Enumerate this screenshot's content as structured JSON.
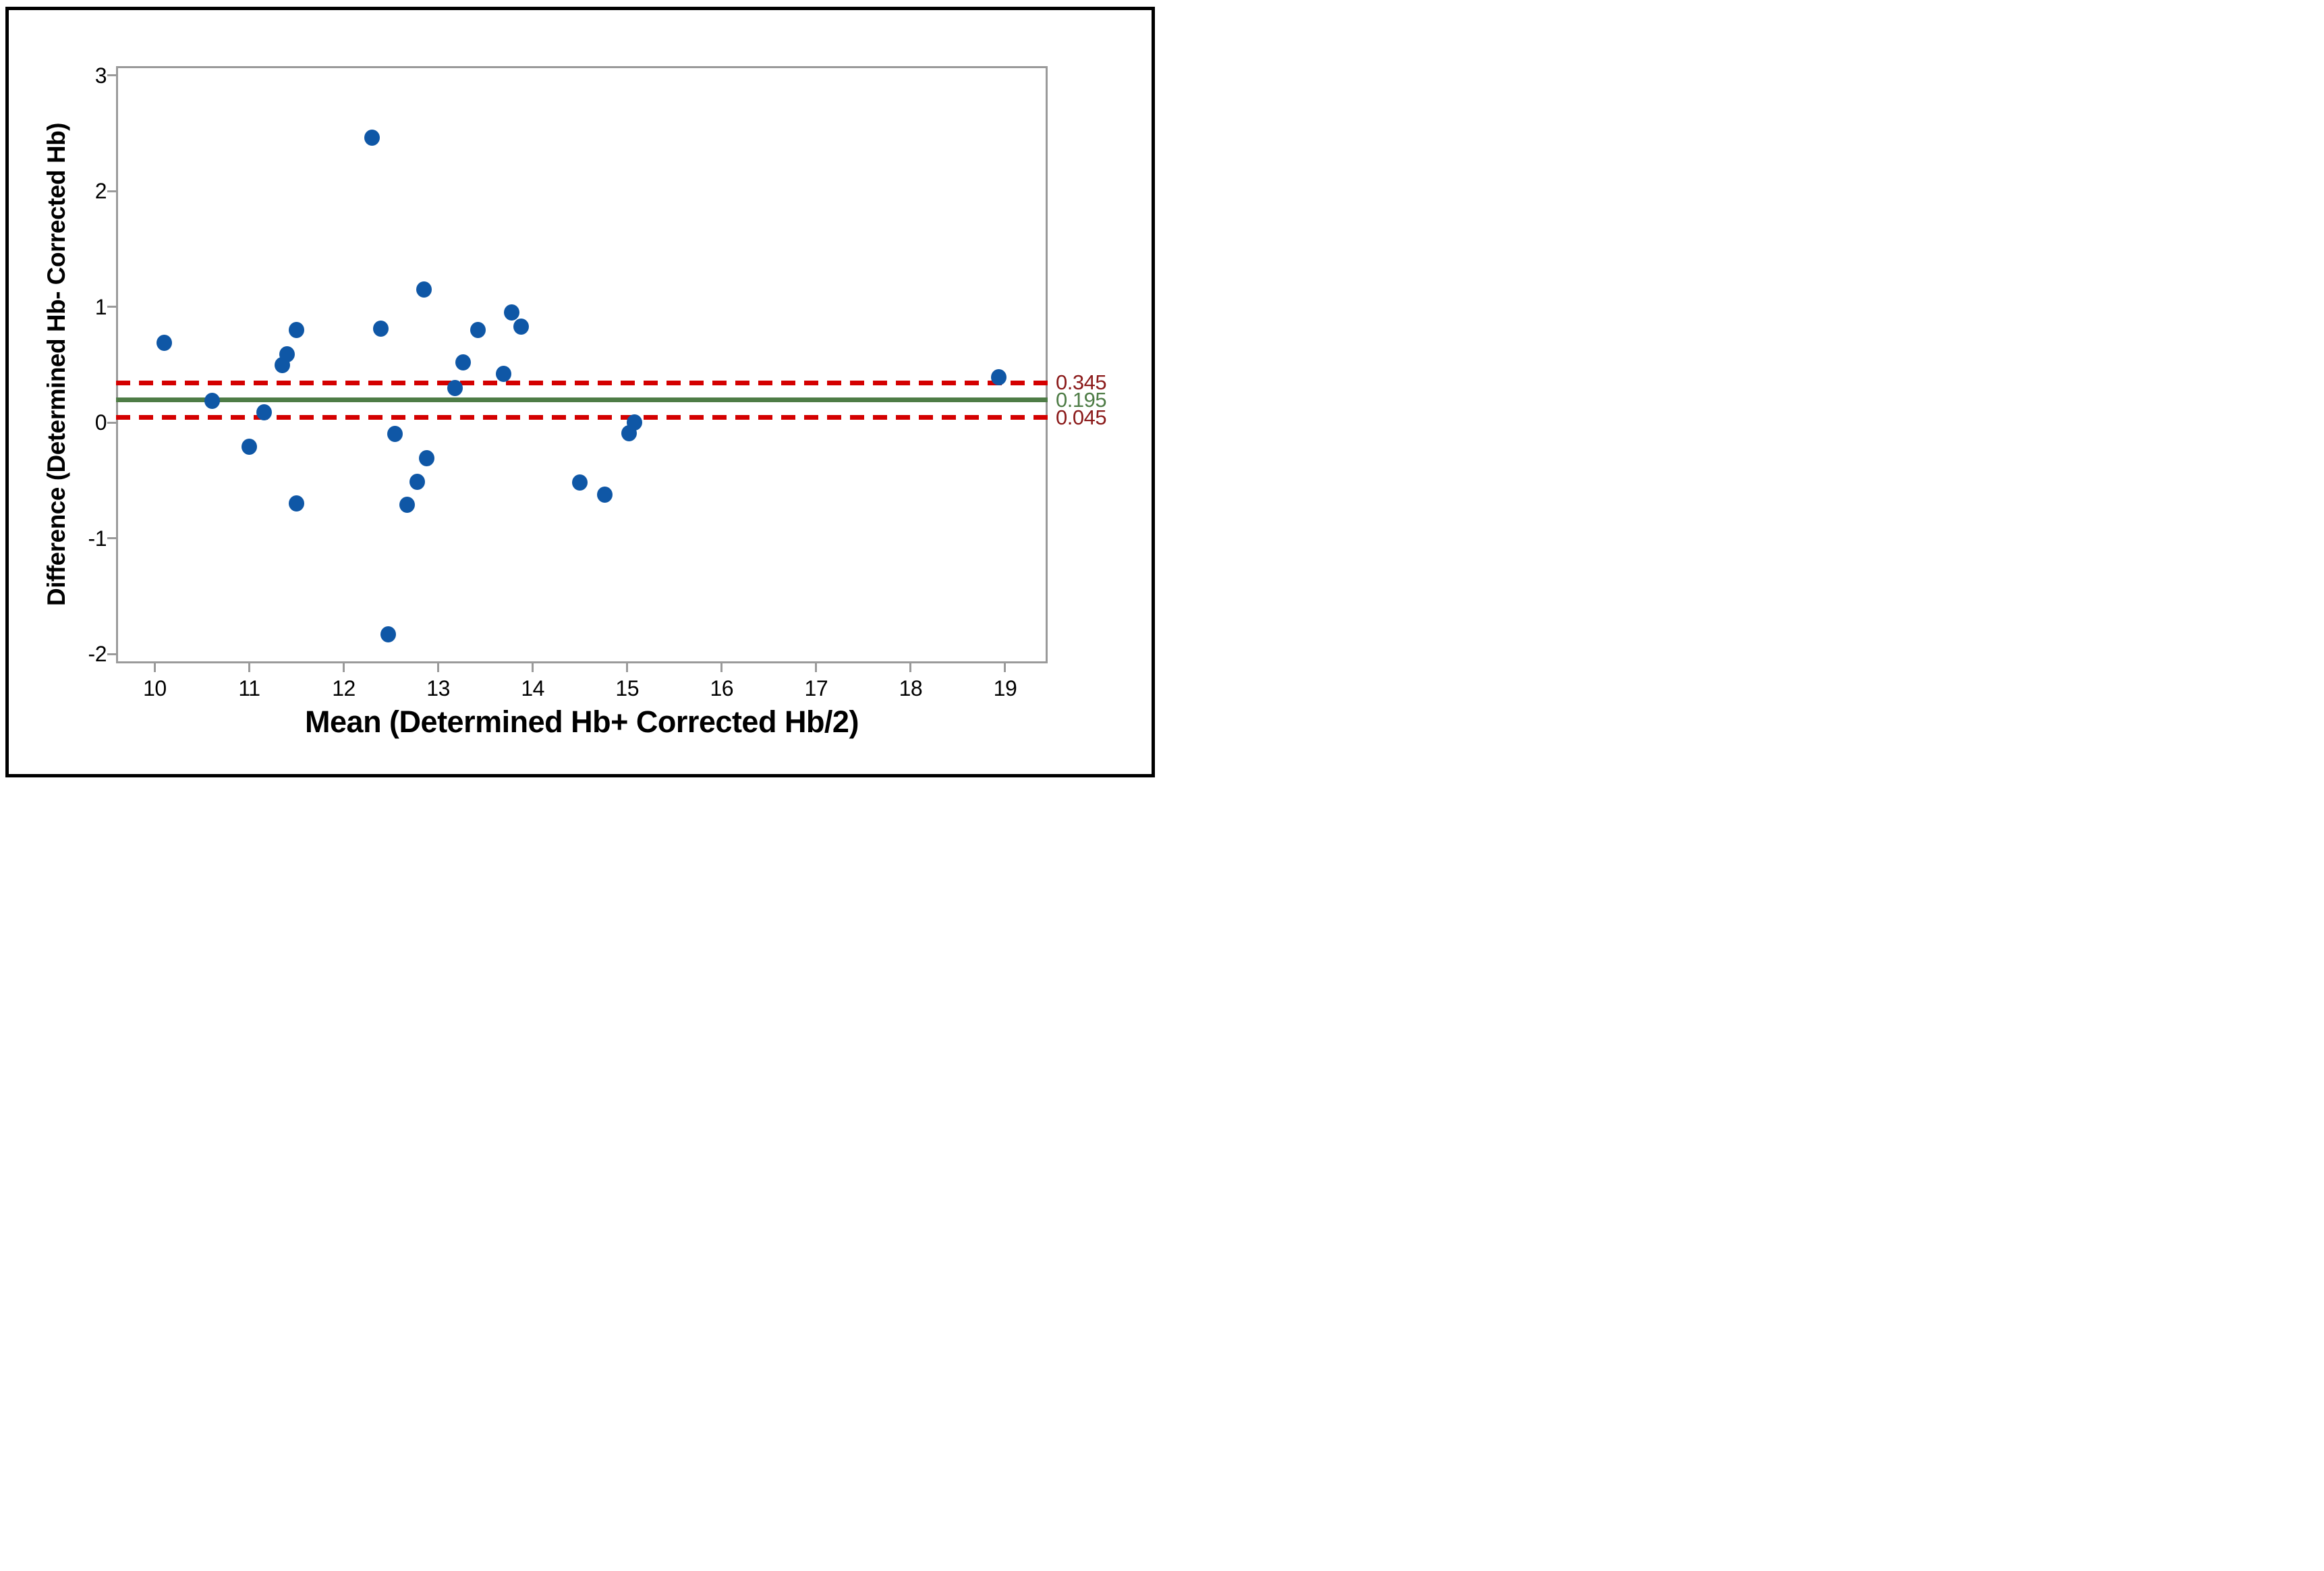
{
  "figure": {
    "kind": "bland-altman scatter plot"
  },
  "chart_data": {
    "type": "scatter",
    "title": "",
    "xlabel": "Mean (Determined Hb+ Corrected Hb/2)",
    "ylabel": "Difference (Determined Hb- Corrected Hb)",
    "xlim": [
      9.59,
      19.45
    ],
    "ylim": [
      -2.08,
      3.08
    ],
    "x_ticks": [
      10,
      11,
      12,
      13,
      14,
      15,
      16,
      17,
      18,
      19
    ],
    "y_ticks": [
      3,
      2,
      1,
      0,
      -1,
      -2
    ],
    "grid": false,
    "legend": false,
    "marker_color": "#0f57a6",
    "frame_color": "#9a9a9a",
    "points": [
      [
        10.1,
        0.69
      ],
      [
        10.61,
        0.19
      ],
      [
        11.0,
        -0.21
      ],
      [
        11.16,
        0.09
      ],
      [
        11.35,
        0.5
      ],
      [
        11.4,
        0.59
      ],
      [
        11.5,
        0.8
      ],
      [
        11.5,
        -0.7
      ],
      [
        12.3,
        2.46
      ],
      [
        12.39,
        0.81
      ],
      [
        12.47,
        -1.83
      ],
      [
        12.54,
        -0.1
      ],
      [
        12.67,
        -0.71
      ],
      [
        12.78,
        -0.51
      ],
      [
        12.85,
        1.15
      ],
      [
        12.88,
        -0.31
      ],
      [
        13.18,
        0.3
      ],
      [
        13.26,
        0.52
      ],
      [
        13.42,
        0.8
      ],
      [
        13.69,
        0.42
      ],
      [
        13.78,
        0.95
      ],
      [
        13.88,
        0.83
      ],
      [
        14.5,
        -0.52
      ],
      [
        14.76,
        -0.62
      ],
      [
        15.02,
        -0.09
      ],
      [
        15.08,
        0.0
      ],
      [
        18.93,
        0.39
      ]
    ],
    "reference_lines": [
      {
        "name": "upper-limit",
        "value": 0.345,
        "label": "0.345",
        "style": "dashed",
        "line_color": "#d40000",
        "label_color": "#8b1a1a"
      },
      {
        "name": "mean",
        "value": 0.195,
        "label": "0.195",
        "style": "solid",
        "line_color": "#4e7c46",
        "label_color": "#4e7c46"
      },
      {
        "name": "lower-limit",
        "value": 0.045,
        "label": "0.045",
        "style": "dashed",
        "line_color": "#d40000",
        "label_color": "#8b1a1a"
      }
    ]
  }
}
